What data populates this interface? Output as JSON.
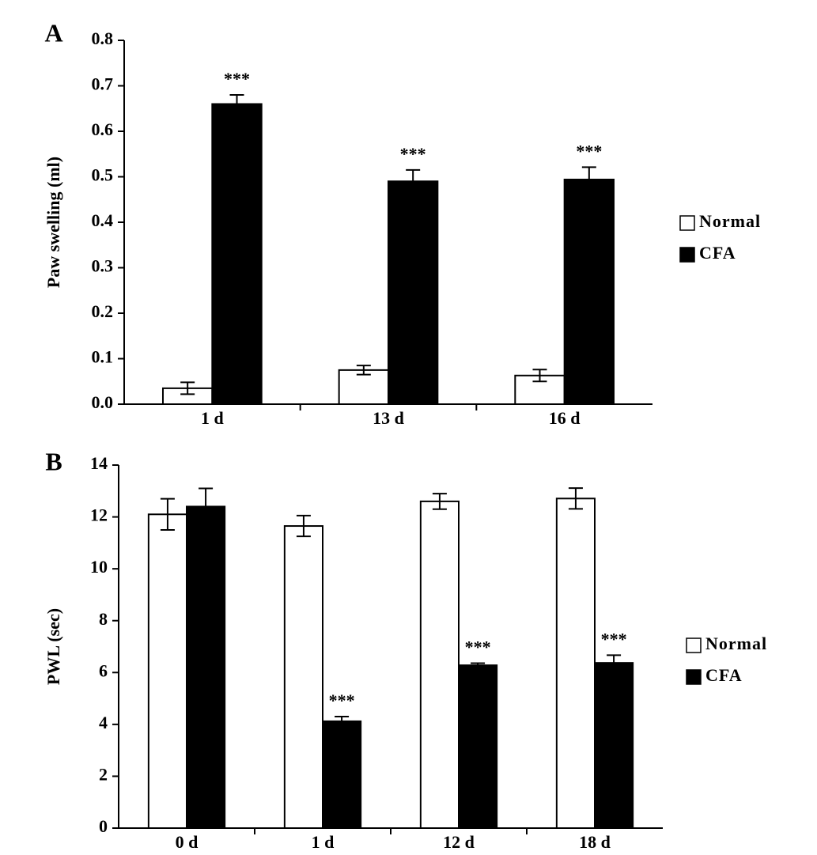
{
  "chart_data": [
    {
      "type": "bar",
      "panel_label": "A",
      "y_label": "Paw swelling (ml)",
      "categories": [
        "1 d",
        "13 d",
        "16 d"
      ],
      "series": [
        {
          "name": "Normal",
          "color": "#ffffff",
          "values": [
            0.035,
            0.075,
            0.063
          ],
          "errors": [
            0.013,
            0.01,
            0.013
          ],
          "annotations": [
            null,
            null,
            null
          ]
        },
        {
          "name": "CFA",
          "color": "#000000",
          "values": [
            0.66,
            0.49,
            0.494
          ],
          "errors": [
            0.02,
            0.025,
            0.027
          ],
          "annotations": [
            "***",
            "***",
            "***"
          ]
        }
      ],
      "ylim": [
        0,
        0.8
      ],
      "yticks": [
        {
          "value": 0,
          "label": "0.0"
        },
        0.1,
        0.2,
        0.3,
        0.4,
        0.5,
        0.6,
        0.7,
        0.8
      ],
      "legend": "right",
      "grid": false
    },
    {
      "type": "bar",
      "panel_label": "B",
      "y_label": "PWL (sec)",
      "categories": [
        "0 d",
        "1 d",
        "12 d",
        "18 d"
      ],
      "series": [
        {
          "name": "Normal",
          "color": "#ffffff",
          "values": [
            12.1,
            11.65,
            12.6,
            12.71
          ],
          "errors": [
            0.6,
            0.4,
            0.3,
            0.4
          ],
          "annotations": [
            null,
            null,
            null,
            null
          ]
        },
        {
          "name": "CFA",
          "color": "#000000",
          "values": [
            12.4,
            4.12,
            6.28,
            6.37
          ],
          "errors": [
            0.7,
            0.18,
            0.08,
            0.3
          ],
          "annotations": [
            null,
            "***",
            "***",
            "***"
          ]
        }
      ],
      "ylim": [
        0,
        14
      ],
      "yticks": [
        0,
        2,
        4,
        6,
        8,
        10,
        12,
        14
      ],
      "legend": "right",
      "grid": false
    }
  ]
}
